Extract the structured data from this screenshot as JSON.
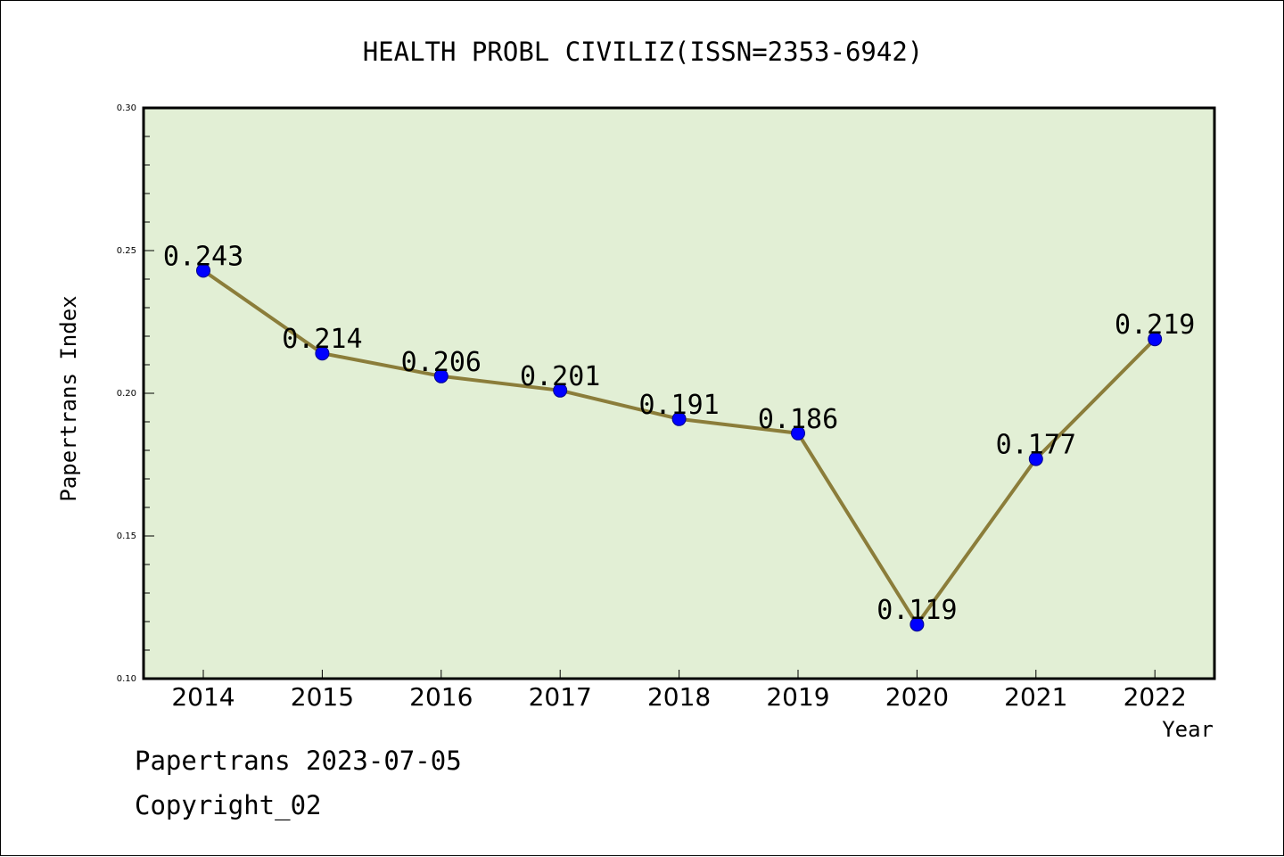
{
  "chart_data": {
    "type": "line",
    "title": "HEALTH PROBL CIVILIZ(ISSN=2353-6942)",
    "xlabel": "Year",
    "ylabel": "Papertrans Index",
    "categories": [
      "2014",
      "2015",
      "2016",
      "2017",
      "2018",
      "2019",
      "2020",
      "2021",
      "2022"
    ],
    "values": [
      0.243,
      0.214,
      0.206,
      0.201,
      0.191,
      0.186,
      0.119,
      0.177,
      0.219
    ],
    "data_labels": [
      "0.243",
      "0.214",
      "0.206",
      "0.201",
      "0.191",
      "0.186",
      "0.119",
      "0.177",
      "0.219"
    ],
    "ylim": [
      0.1,
      0.3
    ],
    "yticks": [
      "0.10",
      "0.15",
      "0.20",
      "0.25",
      "0.30"
    ],
    "grid": false,
    "legend": "none",
    "colors": {
      "plot_background": "#e2efd5",
      "line": "#8b7d3a",
      "marker": "#0000ff",
      "marker_edge": "#00008b",
      "axes": "#000000"
    }
  },
  "footer": {
    "line1": "Papertrans 2023-07-05",
    "line2": "Copyright_02"
  }
}
